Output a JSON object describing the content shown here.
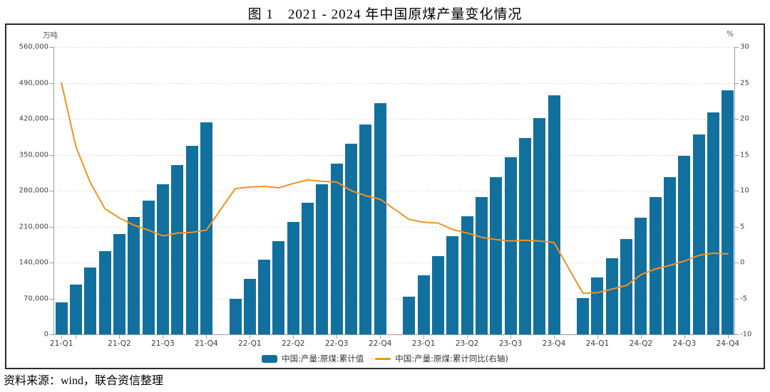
{
  "title": "图 1　2021 - 2024 年中国原煤产量变化情况",
  "source_note": "资料来源：wind，联合资信整理",
  "colors": {
    "bar": "#11709e",
    "line": "#f6921e",
    "panel_border": "#2b2b2b",
    "grid": "#e3e3e3",
    "axis": "#9c9c9c",
    "tick_text": "#404040"
  },
  "chart_data": {
    "type": "bar+line",
    "title": "图 1　2021 - 2024 年中国原煤产量变化情况",
    "left_axis": {
      "unit": "万吨",
      "min": 0,
      "max": 560000,
      "step": 70000,
      "tick_labels": [
        "0",
        "70,000",
        "140,000",
        "210,000",
        "280,000",
        "350,000",
        "420,000",
        "490,000",
        "560,000"
      ]
    },
    "right_axis": {
      "unit": "%",
      "min": -10,
      "max": 30,
      "step": 5,
      "tick_labels": [
        "-10",
        "-5",
        "0",
        "5",
        "10",
        "15",
        "20",
        "25",
        "30"
      ]
    },
    "x_axis": {
      "tick_labels": [
        "21-Q1",
        "21-Q2",
        "21-Q3",
        "21-Q4",
        "22-Q1",
        "22-Q2",
        "22-Q3",
        "22-Q4",
        "23-Q1",
        "23-Q2",
        "23-Q3",
        "23-Q4",
        "24-Q1",
        "24-Q2",
        "24-Q3",
        "24-Q4"
      ],
      "note": "monthly cumulative data Feb-Dec each year, January slot empty"
    },
    "months": [
      "2021-02",
      "2021-03",
      "2021-04",
      "2021-05",
      "2021-06",
      "2021-07",
      "2021-08",
      "2021-09",
      "2021-10",
      "2021-11",
      "2021-12",
      "2022-02",
      "2022-03",
      "2022-04",
      "2022-05",
      "2022-06",
      "2022-07",
      "2022-08",
      "2022-09",
      "2022-10",
      "2022-11",
      "2022-12",
      "2023-02",
      "2023-03",
      "2023-04",
      "2023-05",
      "2023-06",
      "2023-07",
      "2023-08",
      "2023-09",
      "2023-10",
      "2023-11",
      "2023-12",
      "2024-02",
      "2024-03",
      "2024-04",
      "2024-05",
      "2024-06",
      "2024-07",
      "2024-08",
      "2024-09",
      "2024-10",
      "2024-11",
      "2024-12"
    ],
    "series": [
      {
        "name": "中国:产量:原煤:累计值",
        "type": "bar",
        "axis": "left",
        "values": [
          62000,
          97000,
          130000,
          162000,
          196000,
          229000,
          261000,
          293000,
          330000,
          367000,
          413000,
          69000,
          108000,
          145000,
          182000,
          219000,
          256000,
          293000,
          332000,
          371000,
          409000,
          450000,
          73000,
          115000,
          153000,
          191000,
          230000,
          268000,
          306000,
          345000,
          383000,
          422000,
          466000,
          71000,
          111000,
          148000,
          186000,
          227000,
          267000,
          306000,
          348000,
          389000,
          433000,
          476000
        ]
      },
      {
        "name": "中国:产量:原煤:累计同比(右轴)",
        "type": "line",
        "axis": "right",
        "values": [
          25.0,
          16.1,
          11.1,
          7.5,
          6.2,
          5.2,
          4.5,
          3.7,
          4.1,
          4.2,
          4.5,
          10.3,
          10.5,
          10.6,
          10.4,
          11.0,
          11.5,
          11.3,
          11.2,
          10.0,
          9.3,
          8.8,
          6.0,
          5.6,
          5.5,
          4.6,
          4.1,
          3.5,
          3.2,
          3.0,
          3.1,
          3.0,
          2.8,
          -4.3,
          -4.2,
          -3.7,
          -3.2,
          -1.7,
          -0.9,
          -0.4,
          0.2,
          1.0,
          1.3,
          1.2
        ]
      }
    ]
  }
}
